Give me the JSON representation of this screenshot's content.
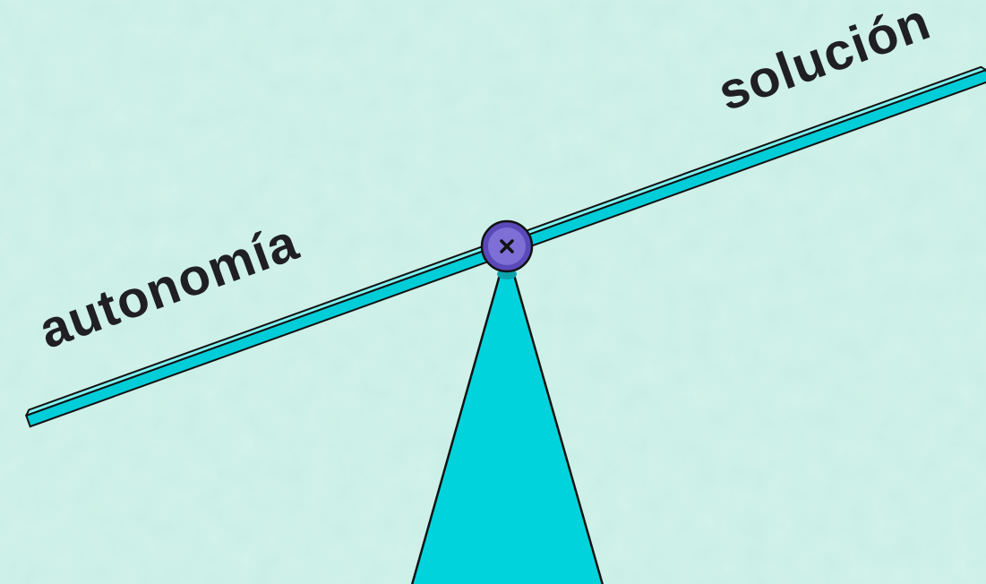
{
  "beam": {
    "left_label": "autonomía",
    "right_label": "solución"
  }
}
